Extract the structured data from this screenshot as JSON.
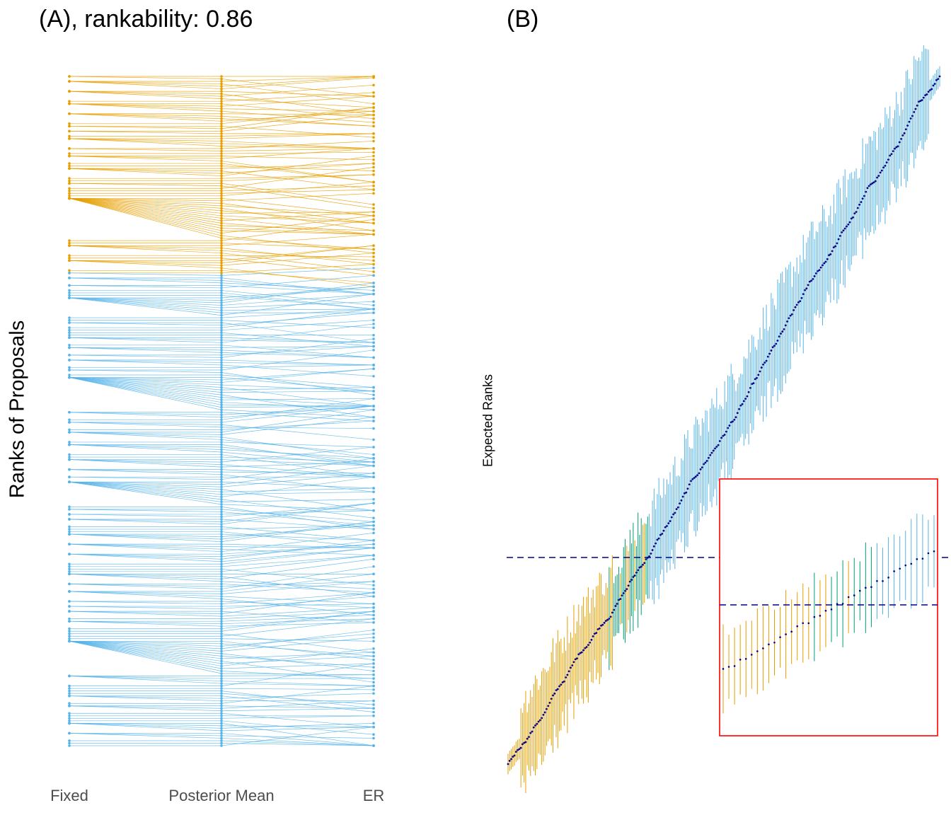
{
  "colors": {
    "top_group": "#E69F00",
    "bottom_group": "#56B4E9",
    "middle_group": "#009E73",
    "expected_point": "#000080",
    "threshold_line": "#00008B",
    "inset_border": "#FF0000"
  },
  "chart_data": [
    {
      "type": "line",
      "title": "(A), rankability: 0.86",
      "ylabel": "Ranks of Proposals",
      "xlabel": "",
      "categories": [
        "Fixed",
        "Posterior Mean",
        "ER"
      ],
      "series": [
        {
          "values_note": "",
          "color": "#E69F00"
        },
        {
          "values_note": "",
          "color": "#56B4E9"
        }
      ],
      "n_proposals": 270,
      "n_top_group": 80,
      "grid": false
    },
    {
      "type": "scatter",
      "title": "(B)",
      "ylabel": "Expected Ranks",
      "xlabel": "",
      "n_proposals": 270,
      "threshold_rank": 80,
      "series": [
        {
          "color": "#E69F00"
        },
        {
          "color": "#009E73"
        },
        {
          "color": "#56B4E9"
        }
      ],
      "inset": {
        "zoomed": true
      },
      "grid": false
    }
  ]
}
